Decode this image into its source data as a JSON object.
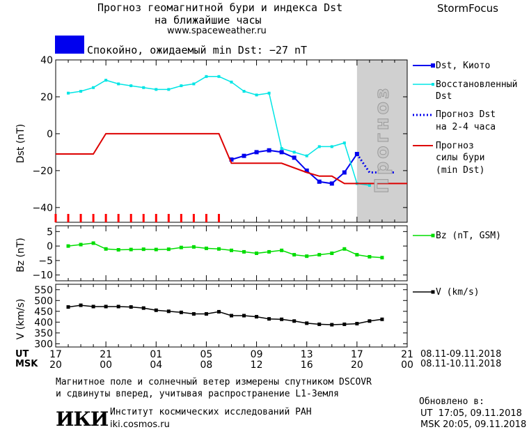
{
  "header": {
    "title_line1": "Прогноз геомагнитной бури и индекса Dst",
    "title_line2": "на ближайшие часы",
    "url": "www.spaceweather.ru",
    "brand": "StormFocus"
  },
  "status": {
    "text": "Спокойно, ожидаемый min Dst: −27 nT",
    "color": "#0000ee"
  },
  "legend": {
    "dst_kyoto": "Dst, Киото",
    "restored_1": "Восстановленный",
    "restored_2": "Dst",
    "forecast_1": "Прогноз Dst",
    "forecast_2": "на 2-4 часа",
    "storm_1": "Прогноз",
    "storm_2": "силы бури",
    "storm_3": "(min Dst)",
    "bz": "Bz (nT, GSM)",
    "v": "V (km/s)",
    "forecast_band": "Прогноз"
  },
  "axes": {
    "dst_ylabel": "Dst (nT)",
    "bz_ylabel": "Bz (nT)",
    "v_ylabel": "V (km/s)",
    "ut_label": "UT",
    "msk_label": "MSK",
    "ut_ticks": [
      "17",
      "21",
      "01",
      "05",
      "09",
      "13",
      "17",
      "21"
    ],
    "msk_ticks": [
      "20",
      "00",
      "04",
      "08",
      "12",
      "16",
      "20",
      "00"
    ],
    "ut_range": "08.11-09.11.2018",
    "msk_range": "08.11-10.11.2018"
  },
  "footer": {
    "note_1": "Магнитное поле и солнечный ветер измерены спутником DSCOVR",
    "note_2": "и сдвинуты вперед, учитывая распространение L1-Земля",
    "logo": "ИКИ",
    "institute": "Институт космических исследований РАН",
    "site": "iki.cosmos.ru",
    "updated_label": "Обновлено в:",
    "updated_ut": "UT  17:05, 09.11.2018",
    "updated_msk": "MSK 20:05, 09.11.2018"
  },
  "chart_data": [
    {
      "type": "line",
      "panel": "dst",
      "x_unit": "hours after 17 UT 08.11.2018",
      "xlim": [
        0,
        28
      ],
      "ylim": [
        -48,
        40
      ],
      "yticks": [
        40,
        20,
        0,
        -20,
        -40
      ],
      "series": [
        {
          "name": "Dst, Киото",
          "color": "#0000ee",
          "x": [
            14,
            15,
            16,
            17,
            18,
            19,
            20,
            21,
            22,
            23,
            24
          ],
          "y": [
            -14,
            -12,
            -10,
            -9,
            -10,
            -13,
            -20,
            -26,
            -27,
            -21,
            -11
          ]
        },
        {
          "name": "Восстановленный Dst",
          "color": "#00e5e5",
          "x": [
            1,
            2,
            3,
            4,
            5,
            6,
            7,
            8,
            9,
            10,
            11,
            12,
            13,
            14,
            15,
            16,
            17,
            18,
            19,
            20,
            21,
            22,
            23,
            24,
            25
          ],
          "y": [
            22,
            23,
            25,
            29,
            27,
            26,
            25,
            24,
            24,
            26,
            27,
            31,
            31,
            28,
            23,
            21,
            22,
            -8,
            -10,
            -12,
            -7,
            -7,
            -5,
            -27,
            -28
          ]
        },
        {
          "name": "Прогноз Dst на 2-4 часа",
          "color": "#0000ee",
          "x": [
            24,
            25,
            26,
            27
          ],
          "y": [
            -11,
            -21,
            -21,
            -21
          ]
        },
        {
          "name": "Прогноз силы бури (min Dst)",
          "color": "#dd0000",
          "x": [
            0,
            3,
            4,
            13,
            14,
            18,
            20,
            21,
            22,
            23,
            24,
            28
          ],
          "y": [
            -11,
            -11,
            0,
            0,
            -16,
            -16,
            -21,
            -23,
            -23,
            -27,
            -27,
            -27
          ]
        }
      ],
      "markers": {
        "color": "#ff0000",
        "x": [
          0,
          1,
          2,
          3,
          4,
          5,
          6,
          7,
          8,
          9,
          10,
          11,
          12,
          13
        ]
      },
      "forecast_band": {
        "x": [
          24,
          28
        ],
        "color": "#d0d0d0"
      }
    },
    {
      "type": "line",
      "panel": "bz",
      "x_unit": "hours after 17 UT 08.11.2018",
      "xlim": [
        0,
        28
      ],
      "ylim": [
        -12,
        7
      ],
      "yticks": [
        5,
        0,
        -5,
        -10
      ],
      "series": [
        {
          "name": "Bz (nT, GSM)",
          "color": "#00dd00",
          "x": [
            1,
            2,
            3,
            4,
            5,
            6,
            7,
            8,
            9,
            10,
            11,
            12,
            13,
            14,
            15,
            16,
            17,
            18,
            19,
            20,
            21,
            22,
            23,
            24,
            25,
            26
          ],
          "y": [
            0,
            0.5,
            1,
            -1,
            -1.3,
            -1.2,
            -1.1,
            -1.2,
            -1.1,
            -0.5,
            -0.3,
            -0.8,
            -1,
            -1.5,
            -2,
            -2.5,
            -2,
            -1.5,
            -3,
            -3.5,
            -3,
            -2.5,
            -1,
            -3,
            -3.7,
            -4
          ]
        }
      ]
    },
    {
      "type": "line",
      "panel": "v",
      "x_unit": "hours after 17 UT 08.11.2018",
      "xlim": [
        0,
        28
      ],
      "ylim": [
        285,
        575
      ],
      "yticks": [
        550,
        500,
        450,
        400,
        350,
        300
      ],
      "series": [
        {
          "name": "V (km/s)",
          "color": "#000000",
          "x": [
            1,
            2,
            3,
            4,
            5,
            6,
            7,
            8,
            9,
            10,
            11,
            12,
            13,
            14,
            15,
            16,
            17,
            18,
            19,
            20,
            21,
            22,
            23,
            24,
            25,
            26
          ],
          "y": [
            470,
            478,
            472,
            472,
            472,
            470,
            465,
            455,
            450,
            445,
            438,
            438,
            448,
            430,
            430,
            425,
            415,
            413,
            405,
            395,
            390,
            388,
            390,
            393,
            405,
            413
          ]
        }
      ]
    }
  ]
}
